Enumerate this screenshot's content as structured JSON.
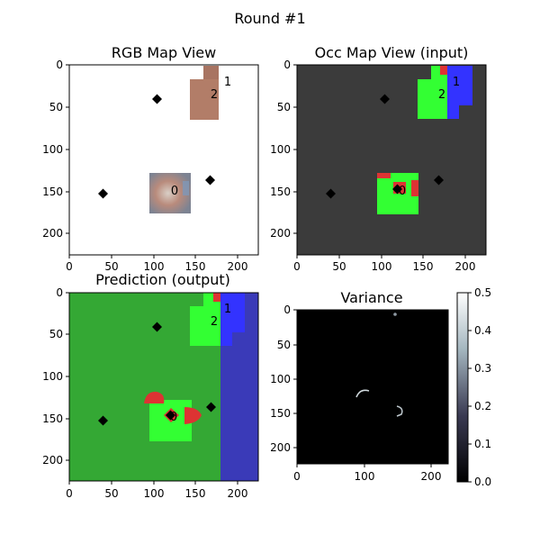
{
  "figure": {
    "title": "Round #1"
  },
  "chart_data": [
    {
      "type": "image",
      "title": "RGB Map View",
      "xlim": [
        0,
        225
      ],
      "ylim": [
        225,
        0
      ],
      "xticks": [
        0,
        50,
        100,
        150,
        200
      ],
      "yticks": [
        0,
        50,
        100,
        150,
        200
      ],
      "markers": [
        [
          105,
          40
        ],
        [
          40,
          152
        ],
        [
          168,
          136
        ]
      ],
      "labels": [
        {
          "text": "0",
          "x": 125,
          "y": 147
        },
        {
          "text": "1",
          "x": 188,
          "y": 19
        },
        {
          "text": "2",
          "x": 172,
          "y": 35
        }
      ],
      "background": "#ffffff"
    },
    {
      "type": "image",
      "title": "Occ Map View (input)",
      "xlim": [
        0,
        225
      ],
      "ylim": [
        225,
        0
      ],
      "xticks": [
        0,
        50,
        100,
        150,
        200
      ],
      "yticks": [
        0,
        50,
        100,
        150,
        200
      ],
      "markers": [
        [
          105,
          40
        ],
        [
          40,
          152
        ],
        [
          168,
          136
        ]
      ],
      "labels": [
        {
          "text": "0",
          "x": 125,
          "y": 147
        },
        {
          "text": "1",
          "x": 188,
          "y": 19
        },
        {
          "text": "2",
          "x": 172,
          "y": 35
        }
      ],
      "background": "#3b3b3b"
    },
    {
      "type": "image",
      "title": "Prediction (output)",
      "xlim": [
        0,
        225
      ],
      "ylim": [
        225,
        0
      ],
      "xticks": [
        0,
        50,
        100,
        150,
        200
      ],
      "yticks": [
        0,
        50,
        100,
        150,
        200
      ],
      "markers": [
        [
          105,
          40
        ],
        [
          40,
          152
        ],
        [
          168,
          136
        ]
      ],
      "labels": [
        {
          "text": "0",
          "x": 125,
          "y": 147
        },
        {
          "text": "1",
          "x": 188,
          "y": 19
        },
        {
          "text": "2",
          "x": 172,
          "y": 35
        }
      ],
      "background": "#34a834"
    },
    {
      "type": "heatmap",
      "title": "Variance",
      "xlim": [
        0,
        225
      ],
      "ylim": [
        225,
        0
      ],
      "xticks": [
        0,
        100,
        200
      ],
      "yticks": [
        0,
        50,
        100,
        150,
        200
      ],
      "colorbar": {
        "range": [
          0,
          0.5
        ],
        "ticks": [
          "0.0",
          "0.1",
          "0.2",
          "0.3",
          "0.4",
          "0.5"
        ],
        "colormap": "bone"
      },
      "background": "#000000"
    }
  ],
  "colors": {
    "free": "#33ff33",
    "object": "#dd3333",
    "goal": "#3333ff",
    "unknown": "#3b3b3b"
  }
}
